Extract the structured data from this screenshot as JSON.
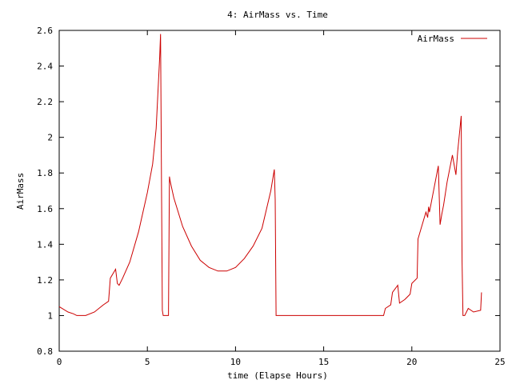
{
  "chart_data": {
    "type": "line",
    "title": "4: AirMass vs. Time",
    "xlabel": "time (Elapse Hours)",
    "ylabel": "AirMass",
    "xlim": [
      0,
      25
    ],
    "ylim": [
      0.8,
      2.6
    ],
    "xticks": [
      0,
      5,
      10,
      15,
      20,
      25
    ],
    "xtick_labels": [
      "0",
      "5",
      "10",
      "15",
      "20",
      "25"
    ],
    "yticks": [
      0.8,
      1,
      1.2,
      1.4,
      1.6,
      1.8,
      2,
      2.2,
      2.4,
      2.6
    ],
    "ytick_labels": [
      "0.8",
      "1",
      "1.2",
      "1.4",
      "1.6",
      "1.8",
      "2",
      "2.2",
      "2.4",
      "2.6"
    ],
    "grid": false,
    "legend_position": "top-right",
    "series": [
      {
        "name": "AirMass",
        "color": "#cc0000",
        "x": [
          0,
          0.5,
          0.8,
          1.0,
          1.5,
          2.0,
          2.5,
          2.8,
          2.9,
          3.2,
          3.3,
          3.4,
          3.6,
          4.0,
          4.5,
          5.0,
          5.3,
          5.5,
          5.7,
          5.75,
          5.8,
          5.85,
          5.9,
          6.0,
          6.1,
          6.2,
          6.25,
          6.3,
          6.5,
          7.0,
          7.5,
          8.0,
          8.5,
          9.0,
          9.5,
          10.0,
          10.5,
          11.0,
          11.5,
          12.0,
          12.2,
          12.25,
          12.3,
          12.4,
          18.0,
          18.4,
          18.5,
          18.8,
          18.9,
          19.2,
          19.3,
          19.6,
          19.9,
          20.0,
          20.3,
          20.35,
          20.5,
          20.8,
          20.9,
          20.95,
          21.0,
          21.5,
          21.6,
          21.7,
          21.8,
          22.0,
          22.3,
          22.5,
          22.6,
          22.8,
          22.85,
          22.9,
          23.0,
          23.2,
          23.5,
          23.9,
          23.95
        ],
        "y": [
          1.05,
          1.02,
          1.01,
          1.0,
          1.0,
          1.02,
          1.06,
          1.08,
          1.21,
          1.26,
          1.18,
          1.17,
          1.21,
          1.3,
          1.47,
          1.69,
          1.85,
          2.05,
          2.45,
          2.58,
          1.8,
          1.03,
          1.0,
          1.0,
          1.0,
          1.0,
          1.78,
          1.75,
          1.66,
          1.5,
          1.39,
          1.31,
          1.27,
          1.25,
          1.25,
          1.27,
          1.32,
          1.39,
          1.49,
          1.7,
          1.82,
          1.65,
          1.0,
          1.0,
          1.0,
          1.0,
          1.04,
          1.06,
          1.13,
          1.17,
          1.07,
          1.09,
          1.12,
          1.18,
          1.21,
          1.43,
          1.48,
          1.58,
          1.55,
          1.61,
          1.58,
          1.84,
          1.51,
          1.57,
          1.62,
          1.75,
          1.9,
          1.79,
          1.92,
          2.12,
          1.3,
          1.0,
          1.0,
          1.04,
          1.02,
          1.03,
          1.13
        ]
      }
    ]
  }
}
